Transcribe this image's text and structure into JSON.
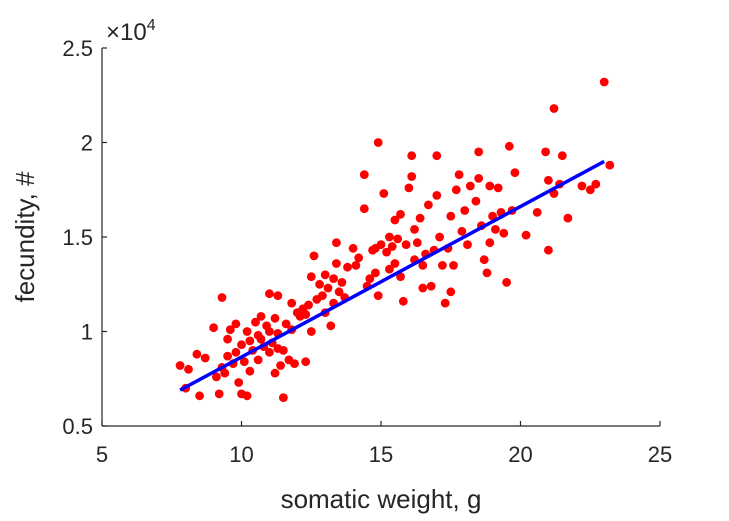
{
  "chart_data": {
    "type": "scatter",
    "title": "",
    "xlabel": "somatic weight, g",
    "ylabel": "fecundity, #",
    "xlim": [
      5,
      25
    ],
    "ylim": [
      5000,
      25000
    ],
    "x_ticks": [
      5,
      10,
      15,
      20,
      25
    ],
    "x_tick_labels": [
      "5",
      "10",
      "15",
      "20",
      "25"
    ],
    "y_ticks": [
      5000,
      10000,
      15000,
      20000,
      25000
    ],
    "y_tick_labels": [
      "0.5",
      "1",
      "1.5",
      "2",
      "2.5"
    ],
    "y_exponent": {
      "base": "×10",
      "power": "4"
    },
    "grid": false,
    "colors": {
      "points": "#ff0000",
      "fit_line": "#0000ff",
      "axes": "#262626"
    },
    "series": [
      {
        "type": "scatter",
        "points": [
          [
            7.8,
            8200
          ],
          [
            8.0,
            7000
          ],
          [
            8.1,
            8000
          ],
          [
            8.4,
            8800
          ],
          [
            8.5,
            6600
          ],
          [
            8.7,
            8600
          ],
          [
            9.0,
            10200
          ],
          [
            9.1,
            7600
          ],
          [
            9.2,
            6700
          ],
          [
            9.3,
            11800
          ],
          [
            9.3,
            8100
          ],
          [
            9.4,
            7800
          ],
          [
            9.5,
            8700
          ],
          [
            9.5,
            9600
          ],
          [
            9.6,
            10100
          ],
          [
            9.7,
            8300
          ],
          [
            9.8,
            10400
          ],
          [
            9.8,
            8900
          ],
          [
            9.9,
            7300
          ],
          [
            10.0,
            6700
          ],
          [
            10.0,
            9300
          ],
          [
            10.1,
            8400
          ],
          [
            10.2,
            10000
          ],
          [
            10.3,
            9500
          ],
          [
            10.3,
            7900
          ],
          [
            10.4,
            9000
          ],
          [
            10.5,
            10500
          ],
          [
            10.6,
            9800
          ],
          [
            10.6,
            8500
          ],
          [
            10.7,
            10800
          ],
          [
            10.7,
            9600
          ],
          [
            10.8,
            9200
          ],
          [
            10.9,
            10300
          ],
          [
            11.0,
            12000
          ],
          [
            11.0,
            10000
          ],
          [
            11.0,
            8900
          ],
          [
            11.1,
            9400
          ],
          [
            11.2,
            10700
          ],
          [
            11.2,
            7800
          ],
          [
            11.3,
            11900
          ],
          [
            11.3,
            9900
          ],
          [
            11.4,
            8200
          ],
          [
            11.5,
            9000
          ],
          [
            11.5,
            6500
          ],
          [
            11.6,
            10400
          ],
          [
            11.7,
            8500
          ],
          [
            11.8,
            10100
          ],
          [
            11.8,
            11500
          ],
          [
            11.9,
            8300
          ],
          [
            12.0,
            11000
          ],
          [
            12.1,
            10800
          ],
          [
            12.2,
            11200
          ],
          [
            12.3,
            10900
          ],
          [
            12.4,
            11400
          ],
          [
            12.5,
            12900
          ],
          [
            12.5,
            10000
          ],
          [
            12.6,
            14000
          ],
          [
            12.7,
            11700
          ],
          [
            12.8,
            12500
          ],
          [
            12.9,
            11900
          ],
          [
            13.0,
            11000
          ],
          [
            13.0,
            13000
          ],
          [
            13.1,
            12300
          ],
          [
            13.2,
            10300
          ],
          [
            13.3,
            12800
          ],
          [
            13.3,
            11500
          ],
          [
            13.4,
            13600
          ],
          [
            13.4,
            14700
          ],
          [
            13.5,
            12100
          ],
          [
            13.6,
            12600
          ],
          [
            13.7,
            11800
          ],
          [
            13.8,
            13400
          ],
          [
            14.0,
            14400
          ],
          [
            14.1,
            13500
          ],
          [
            14.2,
            13900
          ],
          [
            14.4,
            16500
          ],
          [
            14.4,
            18300
          ],
          [
            14.5,
            12400
          ],
          [
            14.6,
            12800
          ],
          [
            14.7,
            14300
          ],
          [
            14.8,
            14400
          ],
          [
            14.8,
            13100
          ],
          [
            14.9,
            11900
          ],
          [
            14.9,
            20000
          ],
          [
            15.0,
            14600
          ],
          [
            15.1,
            17300
          ],
          [
            15.2,
            14200
          ],
          [
            15.3,
            15000
          ],
          [
            15.3,
            13300
          ],
          [
            15.4,
            14500
          ],
          [
            15.5,
            15900
          ],
          [
            15.5,
            13600
          ],
          [
            15.6,
            14900
          ],
          [
            15.7,
            16200
          ],
          [
            15.7,
            12900
          ],
          [
            15.8,
            11600
          ],
          [
            15.9,
            14600
          ],
          [
            16.0,
            17600
          ],
          [
            16.1,
            18200
          ],
          [
            16.1,
            19300
          ],
          [
            16.2,
            15400
          ],
          [
            16.2,
            13800
          ],
          [
            16.3,
            14700
          ],
          [
            16.4,
            16000
          ],
          [
            16.5,
            13500
          ],
          [
            16.5,
            12300
          ],
          [
            16.6,
            14100
          ],
          [
            16.7,
            16700
          ],
          [
            16.8,
            12400
          ],
          [
            16.9,
            14300
          ],
          [
            17.0,
            17200
          ],
          [
            17.0,
            19300
          ],
          [
            17.1,
            15000
          ],
          [
            17.2,
            13500
          ],
          [
            17.3,
            11500
          ],
          [
            17.4,
            14400
          ],
          [
            17.5,
            16100
          ],
          [
            17.5,
            12100
          ],
          [
            17.6,
            13500
          ],
          [
            17.7,
            17500
          ],
          [
            17.8,
            18300
          ],
          [
            17.9,
            15300
          ],
          [
            18.0,
            16400
          ],
          [
            18.1,
            14600
          ],
          [
            18.2,
            17700
          ],
          [
            18.4,
            16900
          ],
          [
            18.5,
            18100
          ],
          [
            18.5,
            19500
          ],
          [
            18.6,
            15600
          ],
          [
            18.7,
            13800
          ],
          [
            18.8,
            13100
          ],
          [
            18.9,
            17700
          ],
          [
            18.9,
            14700
          ],
          [
            19.0,
            16100
          ],
          [
            19.1,
            15400
          ],
          [
            19.2,
            17600
          ],
          [
            19.3,
            16300
          ],
          [
            19.4,
            15200
          ],
          [
            19.5,
            12600
          ],
          [
            19.6,
            19800
          ],
          [
            19.7,
            16400
          ],
          [
            19.8,
            18400
          ],
          [
            20.2,
            15100
          ],
          [
            20.6,
            16300
          ],
          [
            20.9,
            19500
          ],
          [
            21.0,
            18000
          ],
          [
            21.2,
            17300
          ],
          [
            21.4,
            17800
          ],
          [
            21.5,
            19300
          ],
          [
            21.7,
            16000
          ],
          [
            21.2,
            21800
          ],
          [
            22.2,
            17700
          ],
          [
            22.5,
            17500
          ],
          [
            22.7,
            17800
          ],
          [
            21.0,
            14300
          ],
          [
            23.0,
            23200
          ],
          [
            23.2,
            18800
          ],
          [
            10.2,
            6600
          ],
          [
            11.3,
            9100
          ],
          [
            12.3,
            8400
          ]
        ]
      },
      {
        "type": "line",
        "points": [
          [
            7.8,
            6900
          ],
          [
            23.0,
            19000
          ]
        ]
      }
    ]
  }
}
